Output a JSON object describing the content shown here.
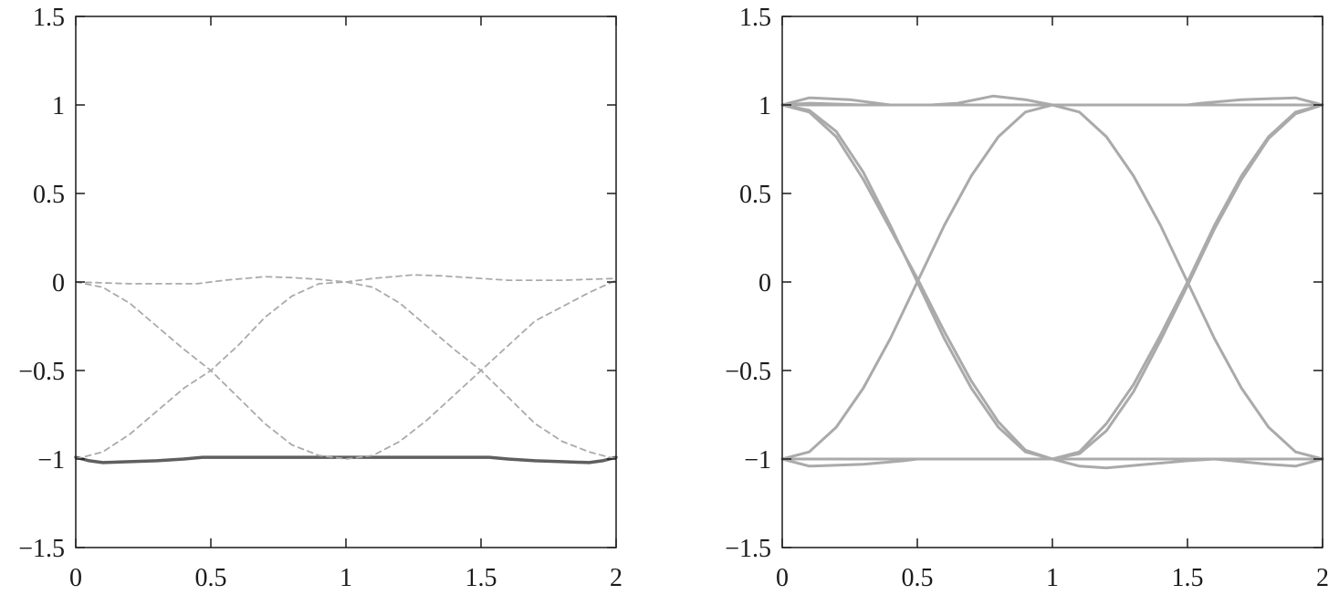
{
  "chart_data": [
    {
      "type": "line",
      "title": "",
      "xlabel": "",
      "ylabel": "",
      "xlim": [
        0,
        2
      ],
      "ylim": [
        -1.5,
        1.5
      ],
      "grid": false,
      "legend": "none",
      "x_ticks": [
        "0",
        "0.5",
        "1",
        "1.5",
        "2"
      ],
      "y_ticks": [
        "1.5",
        "1",
        "0.5",
        "0",
        "−0.5",
        "−1",
        "−1.5"
      ],
      "series": [
        {
          "style": "solid",
          "color": "#5f5f5f",
          "points": [
            [
              0,
              -0.99
            ],
            [
              0.05,
              -1.01
            ],
            [
              0.1,
              -1.02
            ],
            [
              0.2,
              -1.015
            ],
            [
              0.3,
              -1.01
            ],
            [
              0.4,
              -1.0
            ],
            [
              0.47,
              -0.99
            ],
            [
              0.6,
              -0.99
            ],
            [
              0.8,
              -0.99
            ],
            [
              1.0,
              -0.99
            ],
            [
              1.2,
              -0.99
            ],
            [
              1.4,
              -0.99
            ],
            [
              1.53,
              -0.99
            ],
            [
              1.6,
              -1.0
            ],
            [
              1.7,
              -1.01
            ],
            [
              1.8,
              -1.015
            ],
            [
              1.9,
              -1.02
            ],
            [
              1.95,
              -1.01
            ],
            [
              2.0,
              -0.99
            ]
          ]
        },
        {
          "style": "dashed",
          "color": "#aaaaaa",
          "points": [
            [
              0,
              0
            ],
            [
              0.2,
              -0.01
            ],
            [
              0.45,
              -0.01
            ],
            [
              0.55,
              0.01
            ],
            [
              0.7,
              0.03
            ],
            [
              0.8,
              0.025
            ],
            [
              0.9,
              0.015
            ],
            [
              1.0,
              0.0
            ],
            [
              1.1,
              0.02
            ],
            [
              1.25,
              0.04
            ],
            [
              1.35,
              0.035
            ],
            [
              1.5,
              0.02
            ],
            [
              1.6,
              0.01
            ],
            [
              1.8,
              0.01
            ],
            [
              2.0,
              0.02
            ]
          ]
        },
        {
          "style": "dashed",
          "color": "#aaaaaa",
          "points": [
            [
              0,
              0
            ],
            [
              0.1,
              -0.03
            ],
            [
              0.2,
              -0.12
            ],
            [
              0.3,
              -0.25
            ],
            [
              0.4,
              -0.38
            ],
            [
              0.5,
              -0.5
            ],
            [
              0.6,
              -0.65
            ],
            [
              0.7,
              -0.8
            ],
            [
              0.8,
              -0.92
            ],
            [
              0.9,
              -0.98
            ],
            [
              1.0,
              -1.0
            ],
            [
              1.1,
              -0.98
            ],
            [
              1.2,
              -0.9
            ],
            [
              1.3,
              -0.78
            ],
            [
              1.4,
              -0.64
            ],
            [
              1.5,
              -0.5
            ],
            [
              1.6,
              -0.36
            ],
            [
              1.7,
              -0.22
            ],
            [
              1.8,
              -0.14
            ],
            [
              1.9,
              -0.06
            ],
            [
              2.0,
              0.01
            ]
          ]
        },
        {
          "style": "dashed",
          "color": "#aaaaaa",
          "points": [
            [
              0,
              -1.0
            ],
            [
              0.1,
              -0.96
            ],
            [
              0.2,
              -0.86
            ],
            [
              0.3,
              -0.73
            ],
            [
              0.4,
              -0.6
            ],
            [
              0.5,
              -0.5
            ],
            [
              0.6,
              -0.36
            ],
            [
              0.7,
              -0.2
            ],
            [
              0.8,
              -0.08
            ],
            [
              0.9,
              -0.01
            ],
            [
              1.0,
              0.0
            ],
            [
              1.1,
              -0.03
            ],
            [
              1.2,
              -0.12
            ],
            [
              1.3,
              -0.25
            ],
            [
              1.4,
              -0.38
            ],
            [
              1.5,
              -0.5
            ],
            [
              1.6,
              -0.65
            ],
            [
              1.7,
              -0.8
            ],
            [
              1.8,
              -0.9
            ],
            [
              1.9,
              -0.96
            ],
            [
              2.0,
              -1.0
            ]
          ]
        }
      ]
    },
    {
      "type": "line",
      "title": "",
      "xlabel": "",
      "ylabel": "",
      "xlim": [
        0,
        2
      ],
      "ylim": [
        -1.5,
        1.5
      ],
      "grid": false,
      "legend": "none",
      "x_ticks": [
        "0",
        "0.5",
        "1",
        "1.5",
        "2"
      ],
      "y_ticks": [
        "1.5",
        "1",
        "0.5",
        "0",
        "−0.5",
        "−1",
        "−1.5"
      ],
      "series": [
        {
          "style": "solid",
          "color": "#aaaaaa",
          "points": [
            [
              0,
              1.0
            ],
            [
              0.5,
              1.0
            ],
            [
              1.0,
              1.0
            ],
            [
              1.5,
              1.0
            ],
            [
              2.0,
              1.0
            ]
          ]
        },
        {
          "style": "solid",
          "color": "#aaaaaa",
          "points": [
            [
              0,
              1.0
            ],
            [
              0.1,
              1.04
            ],
            [
              0.25,
              1.03
            ],
            [
              0.4,
              1.0
            ],
            [
              0.55,
              1.0
            ],
            [
              0.65,
              1.01
            ],
            [
              0.78,
              1.05
            ],
            [
              0.9,
              1.03
            ],
            [
              1.0,
              1.0
            ]
          ]
        },
        {
          "style": "solid",
          "color": "#aaaaaa",
          "points": [
            [
              1.0,
              1.0
            ],
            [
              1.5,
              1.0
            ],
            [
              1.55,
              1.01
            ],
            [
              1.7,
              1.03
            ],
            [
              1.9,
              1.04
            ],
            [
              2.0,
              1.0
            ]
          ]
        },
        {
          "style": "solid",
          "color": "#aaaaaa",
          "points": [
            [
              0,
              1.0
            ],
            [
              0.1,
              1.01
            ],
            [
              0.3,
              1.0
            ],
            [
              0.5,
              1.0
            ]
          ]
        },
        {
          "style": "solid",
          "color": "#aaaaaa",
          "points": [
            [
              0,
              -1.0
            ],
            [
              0.5,
              -1.0
            ],
            [
              1.0,
              -1.0
            ],
            [
              1.5,
              -1.0
            ],
            [
              2.0,
              -1.0
            ]
          ]
        },
        {
          "style": "solid",
          "color": "#aaaaaa",
          "points": [
            [
              0,
              -1.0
            ],
            [
              0.1,
              -1.04
            ],
            [
              0.3,
              -1.03
            ],
            [
              0.45,
              -1.01
            ],
            [
              0.5,
              -1.0
            ]
          ]
        },
        {
          "style": "solid",
          "color": "#aaaaaa",
          "points": [
            [
              1.0,
              -1.0
            ],
            [
              1.1,
              -1.04
            ],
            [
              1.2,
              -1.05
            ],
            [
              1.35,
              -1.03
            ],
            [
              1.5,
              -1.01
            ],
            [
              1.6,
              -1.0
            ],
            [
              1.8,
              -1.03
            ],
            [
              1.9,
              -1.04
            ],
            [
              2.0,
              -1.0
            ]
          ]
        },
        {
          "style": "solid",
          "color": "#aaaaaa",
          "points": [
            [
              0,
              1.0
            ],
            [
              0.1,
              0.97
            ],
            [
              0.2,
              0.85
            ],
            [
              0.3,
              0.62
            ],
            [
              0.4,
              0.32
            ],
            [
              0.5,
              0.0
            ],
            [
              0.6,
              -0.32
            ],
            [
              0.7,
              -0.6
            ],
            [
              0.8,
              -0.82
            ],
            [
              0.9,
              -0.96
            ],
            [
              1.0,
              -1.0
            ],
            [
              1.1,
              -0.96
            ],
            [
              1.2,
              -0.8
            ],
            [
              1.3,
              -0.58
            ],
            [
              1.4,
              -0.3
            ],
            [
              1.5,
              0.0
            ],
            [
              1.6,
              0.32
            ],
            [
              1.7,
              0.6
            ],
            [
              1.8,
              0.82
            ],
            [
              1.9,
              0.96
            ],
            [
              2.0,
              1.0
            ]
          ]
        },
        {
          "style": "solid",
          "color": "#aaaaaa",
          "points": [
            [
              0,
              1.0
            ],
            [
              0.1,
              0.96
            ],
            [
              0.2,
              0.82
            ],
            [
              0.3,
              0.58
            ],
            [
              0.4,
              0.3
            ],
            [
              0.5,
              0.02
            ],
            [
              0.6,
              -0.28
            ],
            [
              0.7,
              -0.56
            ],
            [
              0.8,
              -0.79
            ],
            [
              0.9,
              -0.95
            ],
            [
              1.0,
              -1.0
            ],
            [
              1.1,
              -0.97
            ],
            [
              1.2,
              -0.84
            ],
            [
              1.3,
              -0.62
            ],
            [
              1.4,
              -0.33
            ],
            [
              1.5,
              -0.02
            ],
            [
              1.6,
              0.3
            ],
            [
              1.7,
              0.58
            ],
            [
              1.8,
              0.81
            ],
            [
              1.9,
              0.95
            ],
            [
              2.0,
              1.0
            ]
          ]
        },
        {
          "style": "solid",
          "color": "#aaaaaa",
          "points": [
            [
              0,
              -1.0
            ],
            [
              0.1,
              -0.96
            ],
            [
              0.2,
              -0.82
            ],
            [
              0.3,
              -0.6
            ],
            [
              0.4,
              -0.32
            ],
            [
              0.5,
              0.0
            ],
            [
              0.6,
              0.32
            ],
            [
              0.7,
              0.6
            ],
            [
              0.8,
              0.82
            ],
            [
              0.9,
              0.96
            ],
            [
              1.0,
              1.0
            ],
            [
              1.1,
              0.96
            ],
            [
              1.2,
              0.82
            ],
            [
              1.3,
              0.6
            ],
            [
              1.4,
              0.32
            ],
            [
              1.5,
              0.0
            ],
            [
              1.6,
              -0.32
            ],
            [
              1.7,
              -0.6
            ],
            [
              1.8,
              -0.82
            ],
            [
              1.9,
              -0.96
            ],
            [
              2.0,
              -1.0
            ]
          ]
        }
      ]
    }
  ]
}
